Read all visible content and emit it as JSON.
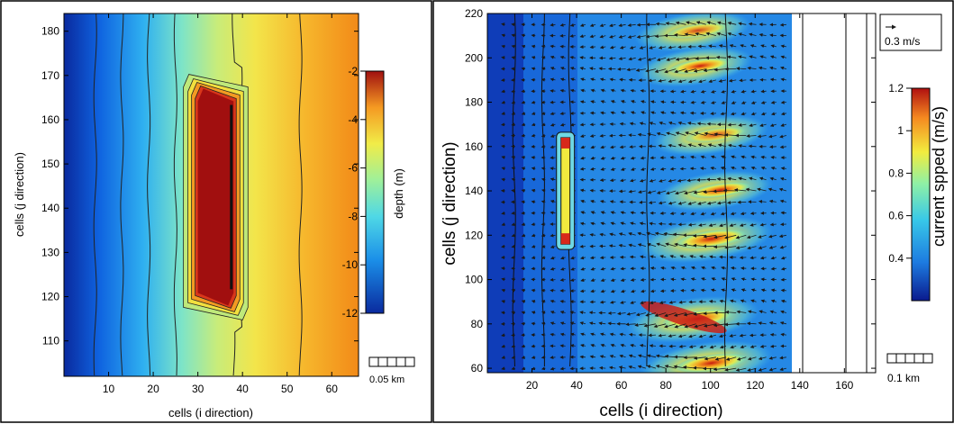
{
  "chart_data": [
    {
      "type": "heatmap",
      "title": "",
      "xlabel": "cells (i direction)",
      "ylabel": "cells (j direction)",
      "xlim": [
        0,
        66
      ],
      "ylim": [
        102,
        184
      ],
      "xticks": [
        "10",
        "20",
        "30",
        "40",
        "50",
        "60"
      ],
      "yticks": [
        "110",
        "120",
        "130",
        "140",
        "150",
        "160",
        "170",
        "180"
      ],
      "colorbar": {
        "label": "depth (m)",
        "range": [
          -12,
          -2
        ],
        "ticks": [
          "-2",
          "-4",
          "-6",
          "-8",
          "-10",
          "-12"
        ]
      },
      "contour_lines_at_x": [
        7,
        13,
        19,
        25,
        38,
        53
      ],
      "feature": {
        "name": "breakwater",
        "x_range": [
          30,
          38
        ],
        "y_range": [
          118,
          167
        ],
        "depth": -2
      },
      "scale_bar": "0.05 km"
    },
    {
      "type": "heatmap",
      "title": "",
      "xlabel": "cells (i direction)",
      "ylabel": "cells (j direction)",
      "xlim": [
        0,
        174
      ],
      "ylim": [
        58,
        220
      ],
      "xticks": [
        "20",
        "40",
        "60",
        "80",
        "100",
        "120",
        "140",
        "160"
      ],
      "yticks": [
        "60",
        "80",
        "100",
        "120",
        "140",
        "160",
        "180",
        "200",
        "220"
      ],
      "colorbar": {
        "label": "current spped (m/s)",
        "range": [
          0.2,
          1.2
        ],
        "ticks": [
          "1.2",
          "1",
          "0.8",
          "0.6",
          "0.4"
        ]
      },
      "vector_scale": "0.3 m/s",
      "scale_bar": "0.1 km",
      "contour_lines_at_x": [
        12,
        25,
        37,
        72,
        107
      ],
      "breakwater": {
        "x_range": [
          33,
          37
        ],
        "y_range": [
          116,
          164
        ]
      },
      "high_speed_zones": [
        {
          "x": 92,
          "y": 212,
          "speed": 0.8
        },
        {
          "x": 93,
          "y": 196,
          "speed": 0.95
        },
        {
          "x": 100,
          "y": 165,
          "speed": 0.8
        },
        {
          "x": 102,
          "y": 140,
          "speed": 0.9
        },
        {
          "x": 98,
          "y": 118,
          "speed": 1.1
        },
        {
          "x": 92,
          "y": 82,
          "speed": 1.2
        },
        {
          "x": 98,
          "y": 62,
          "speed": 1.0
        }
      ]
    }
  ]
}
